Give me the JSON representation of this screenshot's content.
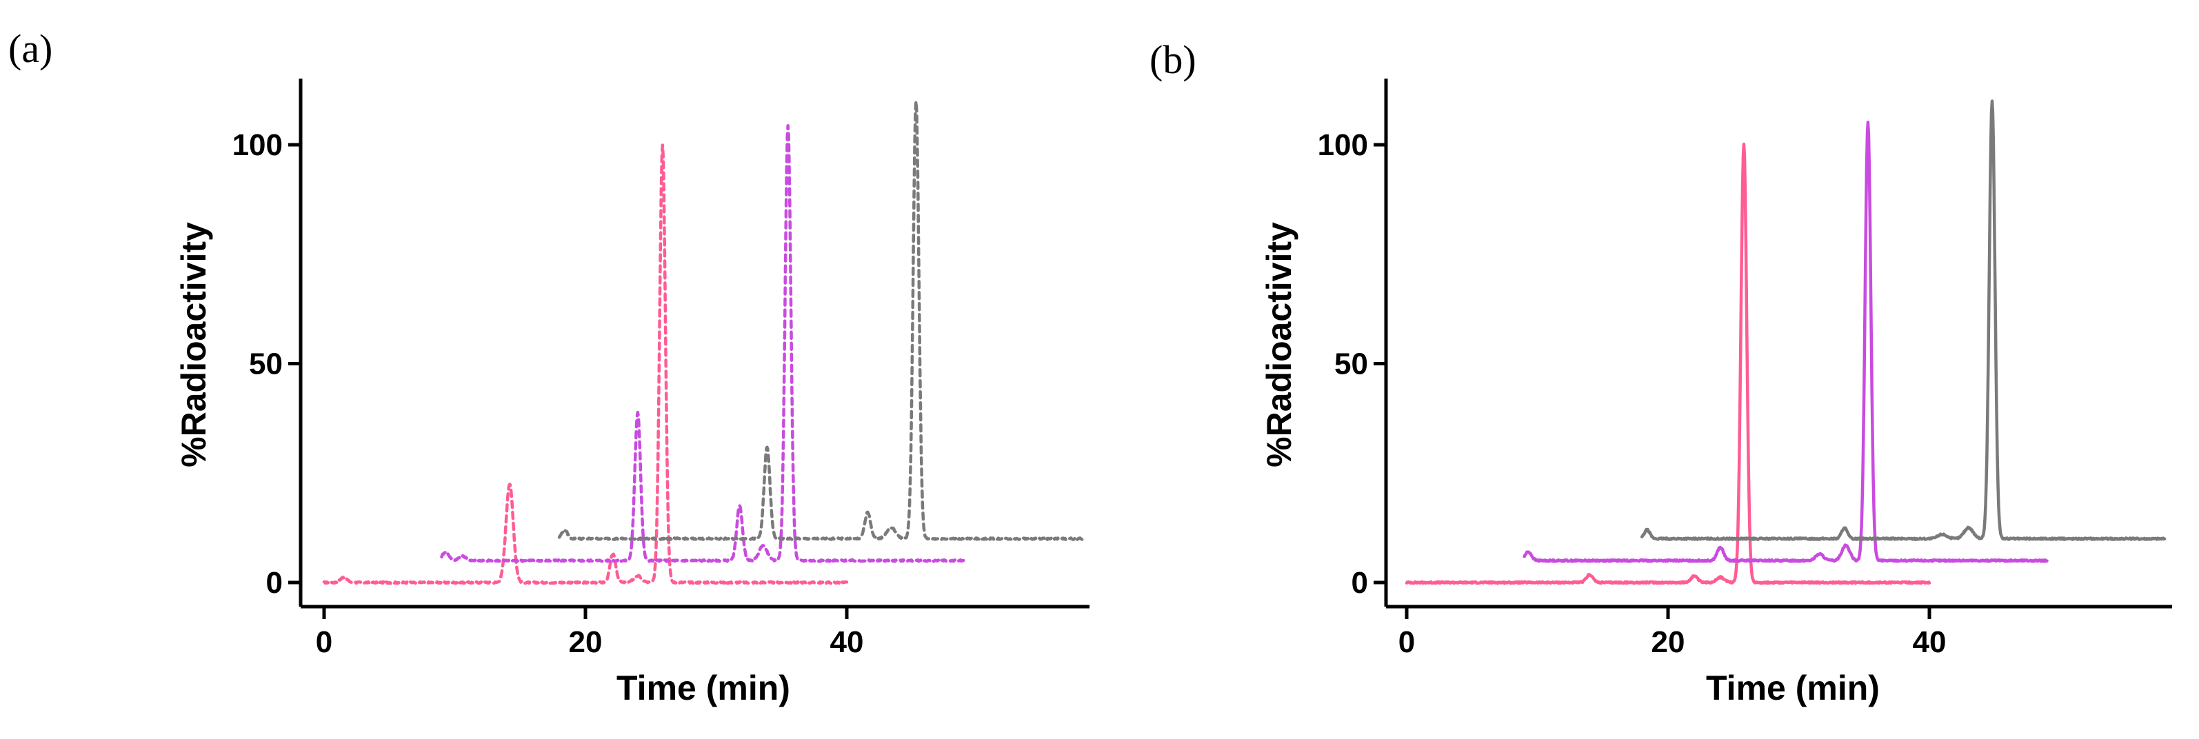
{
  "chart_data": [
    {
      "panel_label": "(a)",
      "type": "line",
      "line_style": "dashed",
      "xlabel": "Time (min)",
      "ylabel": "%Radioactivity",
      "xlim": [
        0,
        58
      ],
      "ylim": [
        0,
        115
      ],
      "xticks": [
        "0",
        "20",
        "40"
      ],
      "yticks": [
        "0",
        "50",
        "100"
      ],
      "series": [
        {
          "name": "pink-trace",
          "color": "#ff5c93",
          "baseline": 0,
          "x_start": 0,
          "x_end": 40,
          "peaks": [
            {
              "x": 1.5,
              "y": 1.2,
              "w": 0.25
            },
            {
              "x": 14.2,
              "y": 22.5,
              "w": 0.28
            },
            {
              "x": 22.1,
              "y": 6.5,
              "w": 0.22
            },
            {
              "x": 24.0,
              "y": 1.5,
              "w": 0.3
            },
            {
              "x": 25.9,
              "y": 100,
              "w": 0.22
            }
          ]
        },
        {
          "name": "purple-trace",
          "color": "#c94be0",
          "baseline": 5,
          "x_start": 9,
          "x_end": 49,
          "peaks": [
            {
              "x": 9.3,
              "y": 7,
              "w": 0.25
            },
            {
              "x": 10.6,
              "y": 6,
              "w": 0.3
            },
            {
              "x": 24.0,
              "y": 39,
              "w": 0.22
            },
            {
              "x": 31.8,
              "y": 17.5,
              "w": 0.22
            },
            {
              "x": 33.6,
              "y": 8.5,
              "w": 0.3
            },
            {
              "x": 35.5,
              "y": 104.5,
              "w": 0.22
            }
          ]
        },
        {
          "name": "gray-trace",
          "color": "#7a7a7a",
          "baseline": 10,
          "x_start": 18,
          "x_end": 58,
          "peaks": [
            {
              "x": 18.4,
              "y": 12,
              "w": 0.22
            },
            {
              "x": 33.9,
              "y": 31,
              "w": 0.22
            },
            {
              "x": 41.6,
              "y": 16,
              "w": 0.22
            },
            {
              "x": 43.4,
              "y": 12.5,
              "w": 0.35
            },
            {
              "x": 45.3,
              "y": 110,
              "w": 0.22
            }
          ]
        }
      ]
    },
    {
      "panel_label": "(b)",
      "type": "line",
      "line_style": "solid",
      "xlabel": "Time (min)",
      "ylabel": "%Radioactivity",
      "xlim": [
        0,
        58
      ],
      "ylim": [
        0,
        115
      ],
      "xticks": [
        "0",
        "20",
        "40"
      ],
      "yticks": [
        "0",
        "50",
        "100"
      ],
      "series": [
        {
          "name": "pink-trace",
          "color": "#ff5c93",
          "baseline": 0,
          "x_start": 0,
          "x_end": 40,
          "peaks": [
            {
              "x": 14.0,
              "y": 1.8,
              "w": 0.25
            },
            {
              "x": 22.0,
              "y": 1.5,
              "w": 0.25
            },
            {
              "x": 24.0,
              "y": 1.2,
              "w": 0.3
            },
            {
              "x": 25.8,
              "y": 100,
              "w": 0.22
            }
          ]
        },
        {
          "name": "purple-trace",
          "color": "#c94be0",
          "baseline": 5,
          "x_start": 9,
          "x_end": 49,
          "peaks": [
            {
              "x": 9.3,
              "y": 7,
              "w": 0.25
            },
            {
              "x": 24.0,
              "y": 8,
              "w": 0.25
            },
            {
              "x": 31.6,
              "y": 6.5,
              "w": 0.3
            },
            {
              "x": 33.6,
              "y": 8.5,
              "w": 0.3
            },
            {
              "x": 35.3,
              "y": 105,
              "w": 0.22
            }
          ]
        },
        {
          "name": "gray-trace",
          "color": "#7a7a7a",
          "baseline": 10,
          "x_start": 18,
          "x_end": 58,
          "peaks": [
            {
              "x": 18.4,
              "y": 12,
              "w": 0.22
            },
            {
              "x": 33.5,
              "y": 12.5,
              "w": 0.22
            },
            {
              "x": 41.0,
              "y": 11,
              "w": 0.35
            },
            {
              "x": 43.0,
              "y": 12.5,
              "w": 0.35
            },
            {
              "x": 44.8,
              "y": 110,
              "w": 0.22
            }
          ]
        }
      ]
    }
  ]
}
